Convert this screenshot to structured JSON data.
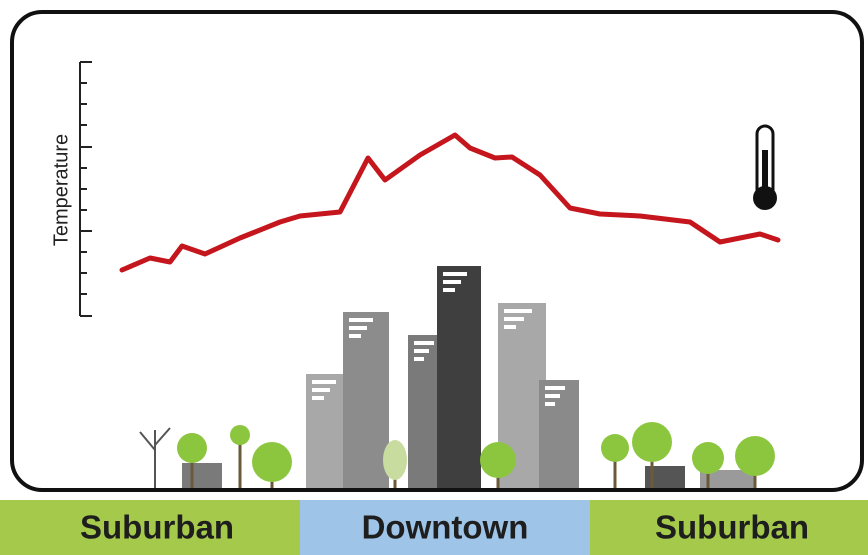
{
  "axis_label": "Temperature",
  "zones": [
    {
      "label": "Suburban"
    },
    {
      "label": "Downtown"
    },
    {
      "label": "Suburban"
    }
  ]
}
